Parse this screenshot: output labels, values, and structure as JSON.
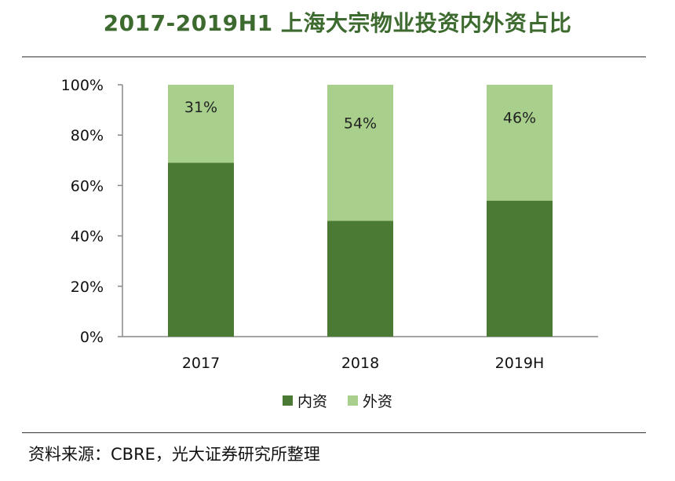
{
  "header": {
    "title": "2017-2019H1 上海大宗物业投资内外资占比"
  },
  "footer": {
    "source": "资料来源：CBRE，光大证券研究所整理"
  },
  "colors": {
    "domestic": "#4a7a33",
    "foreign": "#a8cf8c",
    "title": "#3d6b2f"
  },
  "chart_data": {
    "type": "bar",
    "stacked": true,
    "categories": [
      "2017",
      "2018",
      "2019H"
    ],
    "series": [
      {
        "name": "内资",
        "values": [
          69,
          46,
          54
        ]
      },
      {
        "name": "外资",
        "values": [
          31,
          54,
          46
        ],
        "labels": [
          "31%",
          "54%",
          "46%"
        ]
      }
    ],
    "yticks": [
      "0%",
      "20%",
      "40%",
      "60%",
      "80%",
      "100%"
    ],
    "ylim": [
      0,
      100
    ],
    "grid": false,
    "legend": "bottom-center"
  }
}
